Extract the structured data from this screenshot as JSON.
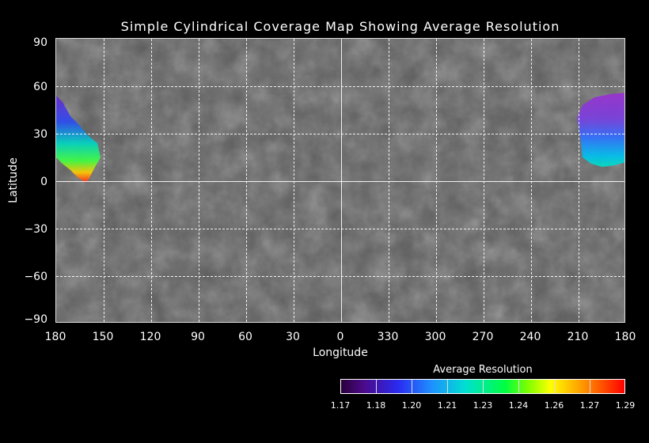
{
  "title": "Simple Cylindrical Coverage Map Showing Average Resolution",
  "axes": {
    "xlabel": "Longitude",
    "ylabel": "Latitude",
    "x_ticks": [
      "180",
      "150",
      "120",
      "90",
      "60",
      "30",
      "0",
      "330",
      "300",
      "270",
      "240",
      "210",
      "180"
    ],
    "y_ticks": [
      "90",
      "60",
      "30",
      "0",
      "−30",
      "−60",
      "−90"
    ]
  },
  "colorbar": {
    "title": "Average Resolution",
    "ticks": [
      "1.17",
      "1.18",
      "1.20",
      "1.21",
      "1.23",
      "1.24",
      "1.26",
      "1.27",
      "1.29"
    ],
    "colors": [
      "#2a003a",
      "#4b0a8a",
      "#2a2af0",
      "#1e90ff",
      "#00e0d0",
      "#00ff40",
      "#80ff00",
      "#ffff00",
      "#ff9000",
      "#ff0000"
    ]
  }
}
